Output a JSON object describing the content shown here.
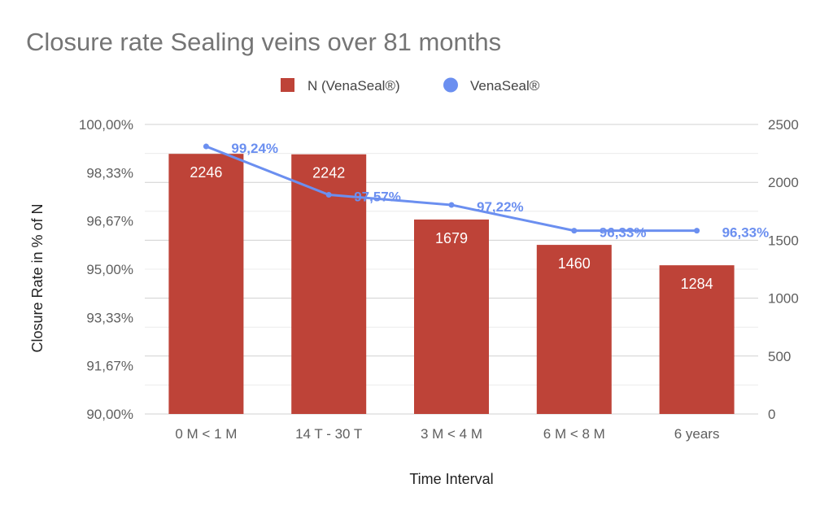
{
  "chart_data": {
    "type": "bar",
    "title": "Closure rate Sealing veins over 81 months",
    "xlabel": "Time Interval",
    "ylabel": "Closure Rate in % of N",
    "ylabel_right": "",
    "categories": [
      "0 M < 1 M",
      "14 T - 30 T",
      "3 M < 4 M",
      "6 M < 8 M",
      "6 years"
    ],
    "left_axis": {
      "ylim": [
        90,
        100
      ],
      "ticks": [
        90,
        91.67,
        93.33,
        95,
        96.67,
        98.33,
        100
      ],
      "tick_labels": [
        "90,00%",
        "91,67%",
        "93,33%",
        "95,00%",
        "96,67%",
        "98,33%",
        "100,00%"
      ]
    },
    "right_axis": {
      "ylim": [
        0,
        2500
      ],
      "ticks": [
        0,
        500,
        1000,
        1500,
        2000,
        2500
      ],
      "tick_labels": [
        "0",
        "500",
        "1000",
        "1500",
        "2000",
        "2500"
      ]
    },
    "series": [
      {
        "name": "N (VenaSeal®)",
        "type": "bar",
        "axis": "right",
        "color": "#be4338",
        "values": [
          2246,
          2242,
          1679,
          1460,
          1284
        ],
        "labels": [
          "2246",
          "2242",
          "1679",
          "1460",
          "1284"
        ]
      },
      {
        "name": "VenaSeal®",
        "type": "line",
        "axis": "left",
        "color": "#6b8ff0",
        "values": [
          99.24,
          97.57,
          97.22,
          96.33,
          96.33
        ],
        "labels": [
          "99,24%",
          "97,57%",
          "97,22%",
          "96,33%",
          "96,33%"
        ]
      }
    ],
    "legend_position": "top",
    "grid": true
  }
}
